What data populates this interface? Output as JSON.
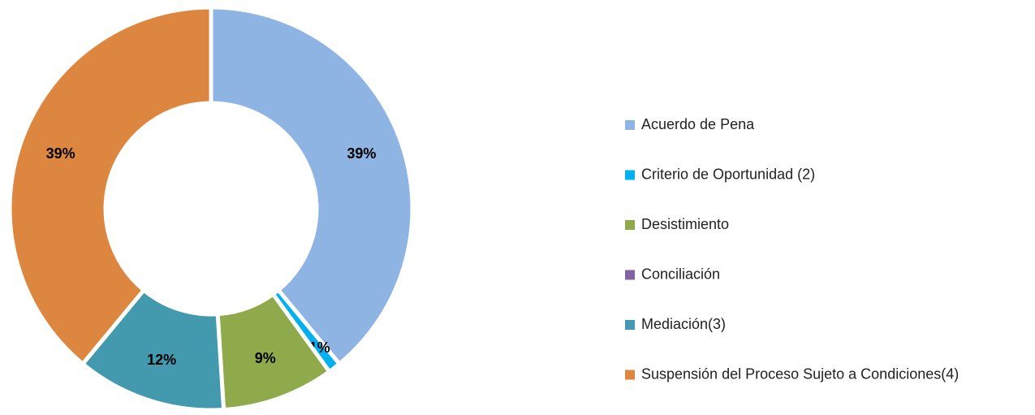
{
  "chart_data": {
    "type": "donut",
    "categories": [
      "Acuerdo de Pena",
      "Criterio de Oportunidad (2)",
      "Desistimiento",
      "Conciliación",
      "Mediación(3)",
      "Suspensión del Proceso Sujeto a Condiciones(4)"
    ],
    "values": [
      39,
      1,
      9,
      0,
      12,
      39
    ],
    "value_labels": [
      "39%",
      "1%",
      "9%",
      null,
      "12%",
      "39%"
    ],
    "colors": [
      "#8eb4e3",
      "#00b0f0",
      "#8faa4b",
      "#8064a2",
      "#4399ae",
      "#dd8640"
    ],
    "legend": "right"
  }
}
